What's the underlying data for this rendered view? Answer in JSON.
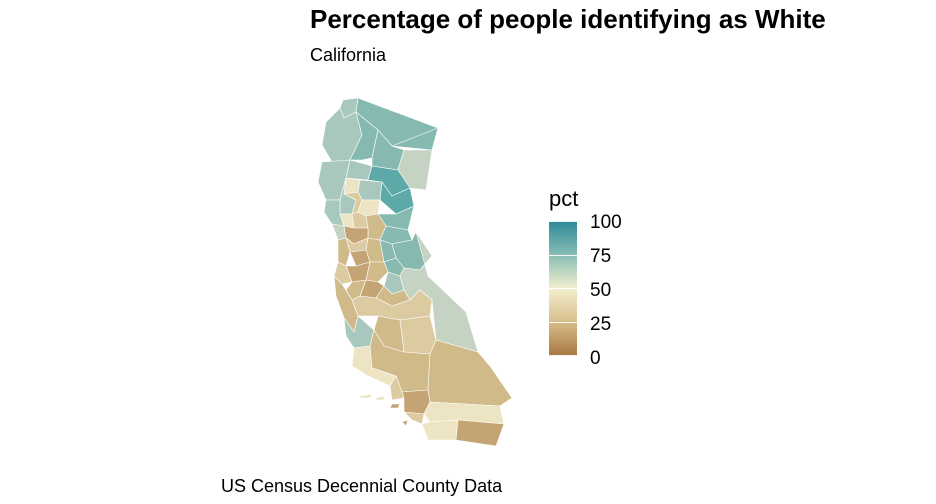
{
  "title": "Percentage of people identifying as White",
  "subtitle": "California",
  "caption": "US Census Decennial County Data",
  "legend": {
    "title": "pct",
    "labels": [
      "100",
      "75",
      "50",
      "25",
      "0"
    ],
    "scale_min": 0,
    "scale_max": 100,
    "colors": {
      "high": "#2e8a9a",
      "upper": "#88bcb4",
      "mid": "#f3efcf",
      "lower": "#d7bd8a",
      "low": "#a87640"
    }
  },
  "map": {
    "region": "California counties",
    "colors": {
      "teal_dark": "#5da9a8",
      "teal": "#86bab0",
      "sage": "#a9c8bd",
      "pale_sage": "#c5d3c3",
      "cream": "#ece4c2",
      "sand": "#dccba0",
      "tan": "#d1ba8a",
      "brown": "#c4a474"
    }
  }
}
